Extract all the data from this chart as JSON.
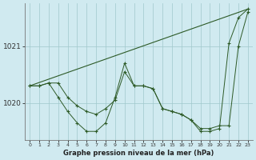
{
  "xlabel": "Graphe pression niveau de la mer (hPa)",
  "bg_color": "#d0eaf0",
  "grid_color": "#a0c8cc",
  "line_color": "#2d5a27",
  "xlim": [
    -0.5,
    23.5
  ],
  "ylim": [
    1019.35,
    1021.75
  ],
  "yticks": [
    1020,
    1021
  ],
  "xticks": [
    0,
    1,
    2,
    3,
    4,
    5,
    6,
    7,
    8,
    9,
    10,
    11,
    12,
    13,
    14,
    15,
    16,
    17,
    18,
    19,
    20,
    21,
    22,
    23
  ],
  "series1_x": [
    0,
    1,
    2,
    3,
    4,
    5,
    6,
    7,
    8,
    9,
    10,
    11,
    12,
    13,
    14,
    15,
    16,
    17,
    18,
    19,
    20,
    21,
    22,
    23
  ],
  "series1_y": [
    1020.3,
    1020.3,
    1020.35,
    1020.35,
    1020.1,
    1019.95,
    1019.85,
    1019.8,
    1019.9,
    1020.05,
    1020.55,
    1020.3,
    1020.3,
    1020.25,
    1019.9,
    1019.85,
    1019.8,
    1019.7,
    1019.55,
    1019.55,
    1019.6,
    1019.6,
    1021.0,
    1021.6
  ],
  "series2_x": [
    0,
    1,
    2,
    3,
    4,
    5,
    6,
    7,
    8,
    9,
    10,
    11,
    12,
    13,
    14,
    15,
    16,
    17,
    18,
    19,
    20,
    21,
    22,
    23
  ],
  "series2_y": [
    1020.3,
    1020.3,
    1020.35,
    1020.1,
    1019.85,
    1019.65,
    1019.5,
    1019.5,
    1019.65,
    1020.1,
    1020.7,
    1020.3,
    1020.3,
    1020.25,
    1019.9,
    1019.85,
    1019.8,
    1019.7,
    1019.5,
    1019.5,
    1019.55,
    1021.05,
    1021.5,
    1021.65
  ],
  "series3_x": [
    0,
    23
  ],
  "series3_y": [
    1020.3,
    1021.65
  ]
}
